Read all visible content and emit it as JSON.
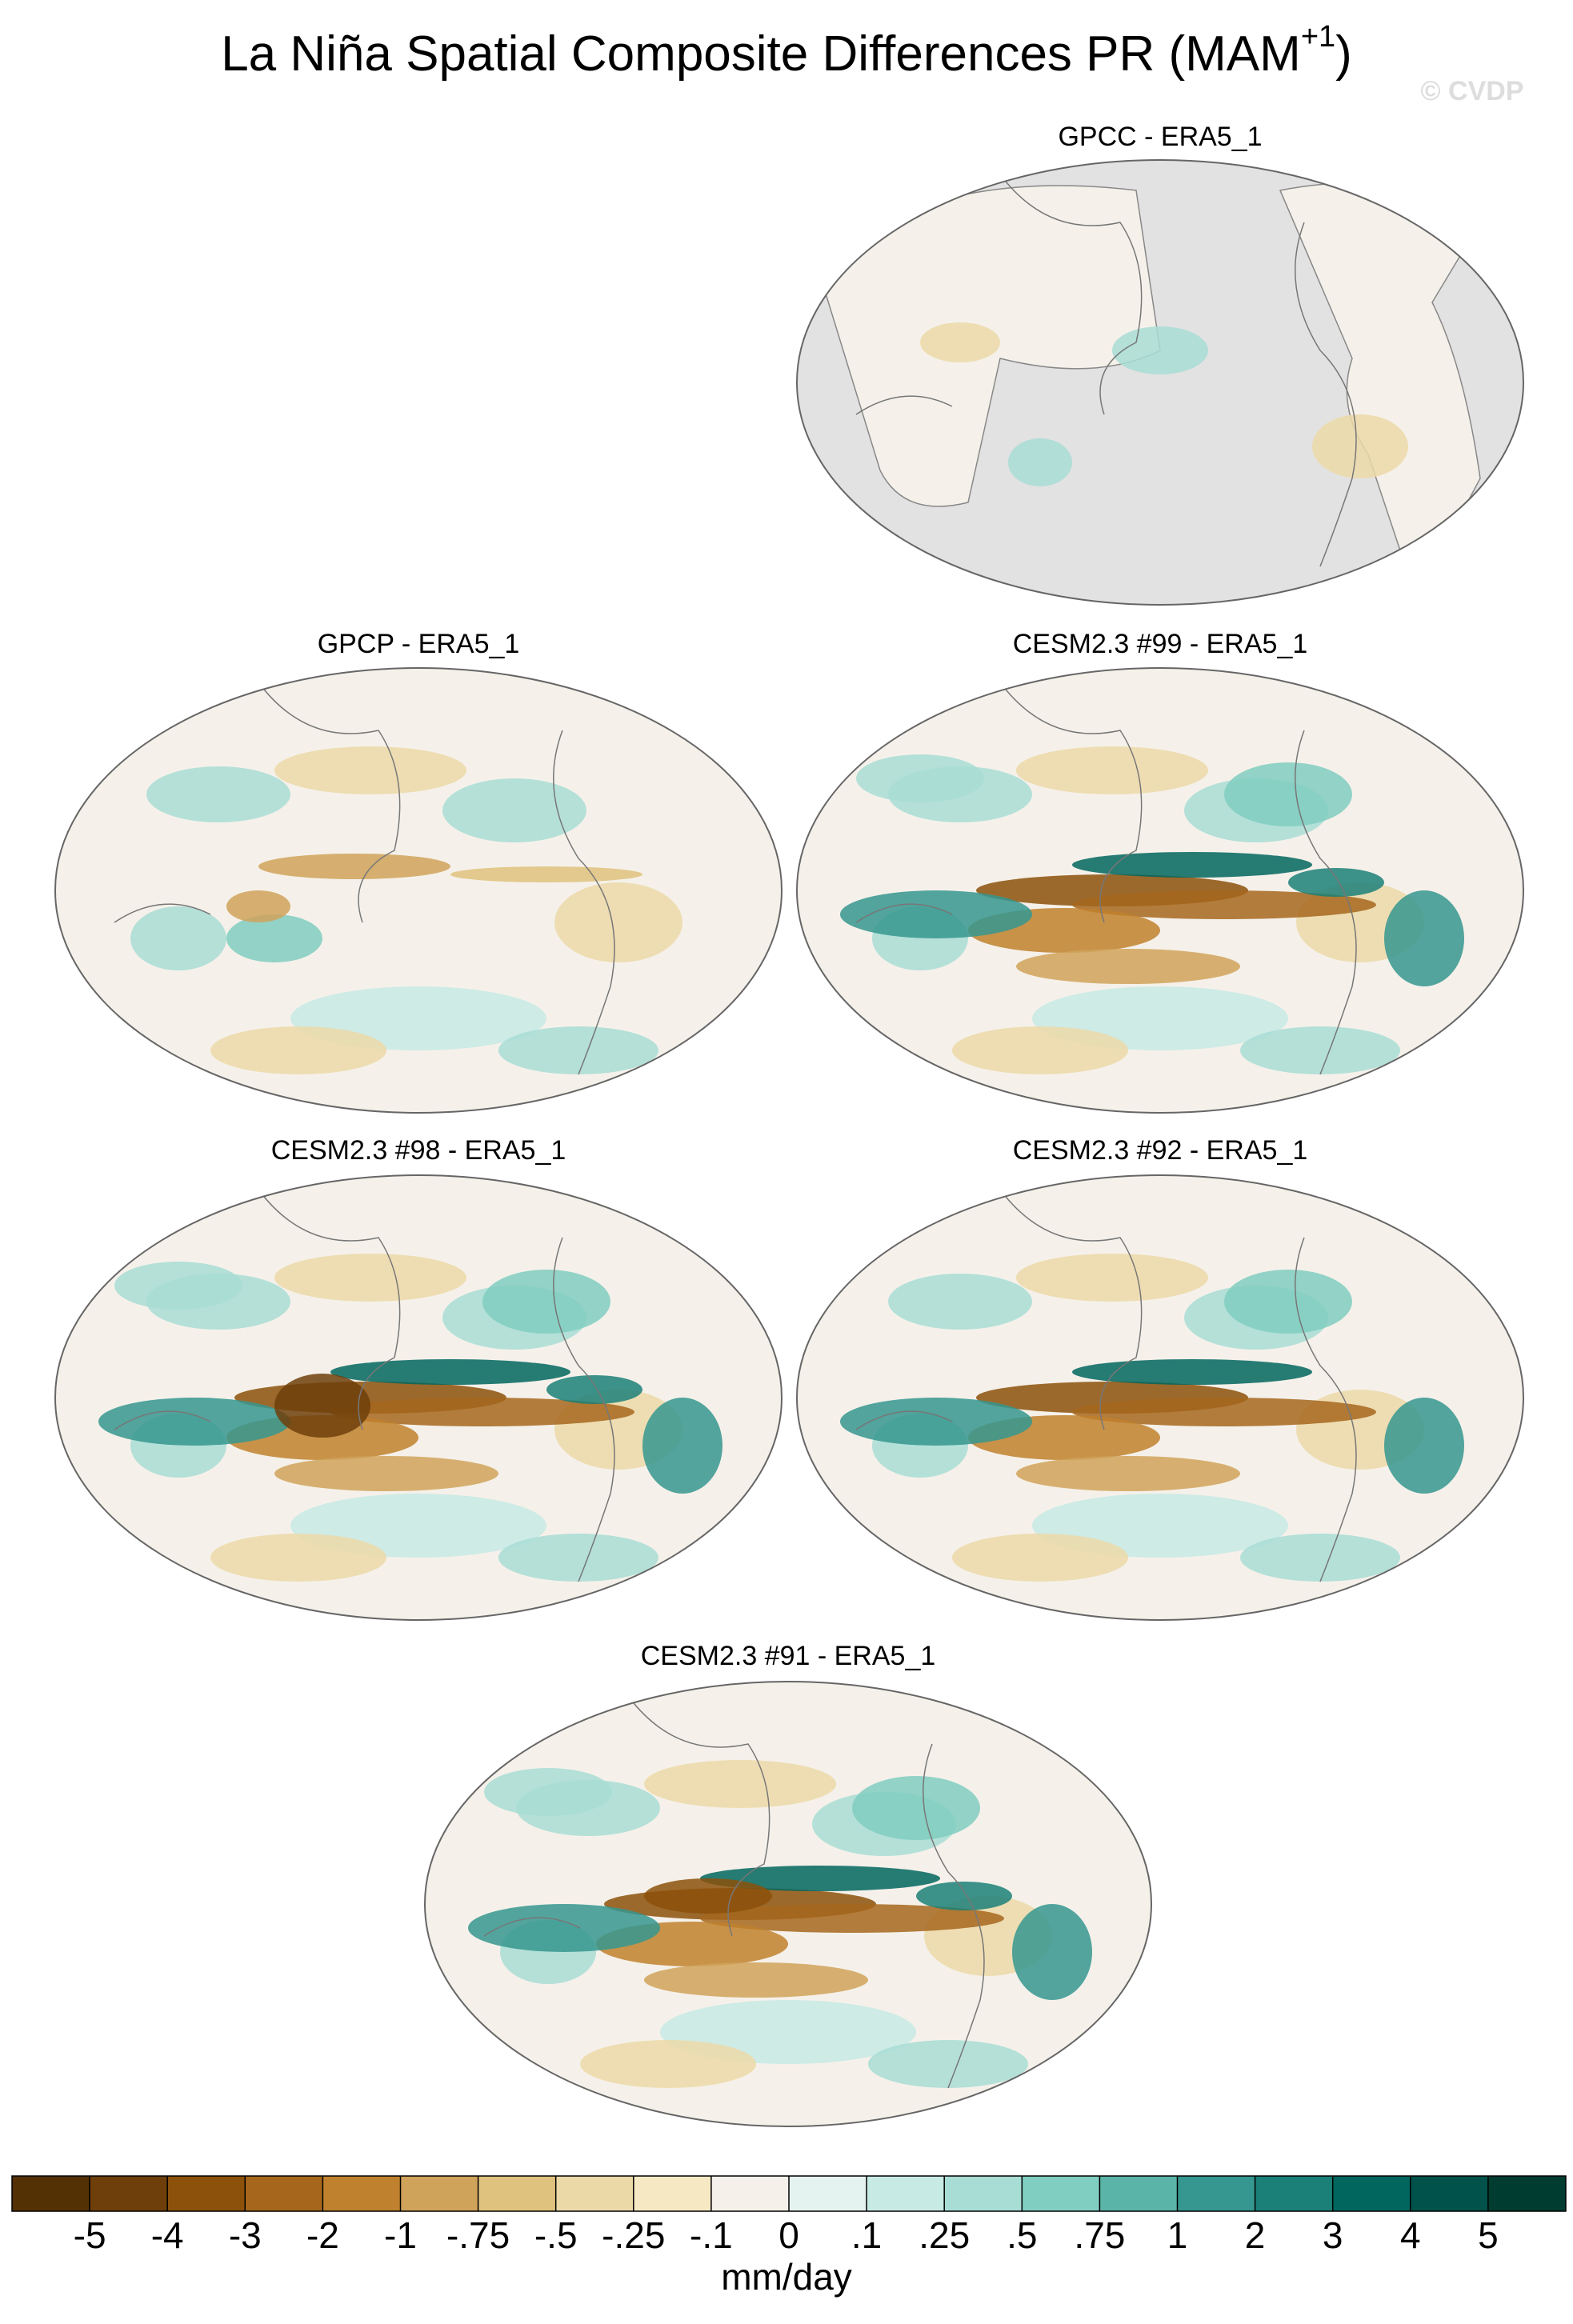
{
  "header": {
    "title": "La Niña Spatial Composite Differences PR (MAM",
    "title_superscript": "+1",
    "title_close": ")",
    "watermark": "© CVDP"
  },
  "panels": [
    {
      "title": "GPCC - ERA5_1"
    },
    {
      "title": "GPCP - ERA5_1"
    },
    {
      "title": "CESM2.3 #99 - ERA5_1"
    },
    {
      "title": "CESM2.3 #98 - ERA5_1"
    },
    {
      "title": "CESM2.3 #92 - ERA5_1"
    },
    {
      "title": "CESM2.3 #91 - ERA5_1"
    }
  ],
  "colorbar": {
    "label": "mm/day",
    "colors": [
      "#543005",
      "#6f3f0b",
      "#8c510a",
      "#a6671d",
      "#bf812d",
      "#d0a35a",
      "#dfc27d",
      "#ecd9a8",
      "#f6e8c3",
      "#f5f1ea",
      "#e4f2f0",
      "#c7eae5",
      "#a8ddd5",
      "#80cdc1",
      "#5ab4a8",
      "#35978f",
      "#1b8078",
      "#01665e",
      "#00524a",
      "#003c30"
    ],
    "ticks": [
      -5,
      -4,
      -3,
      -2,
      -1,
      {
        "value": -0.75,
        "label": "-.75"
      },
      {
        "value": -0.5,
        "label": "-.5"
      },
      {
        "value": -0.25,
        "label": "-.25"
      },
      {
        "value": -0.1,
        "label": "-.1"
      },
      0,
      {
        "value": 0.1,
        "label": ".1"
      },
      {
        "value": 0.25,
        "label": ".25"
      },
      {
        "value": 0.5,
        "label": ".5"
      },
      {
        "value": 0.75,
        "label": ".75"
      },
      1,
      2,
      3,
      4,
      5
    ]
  }
}
